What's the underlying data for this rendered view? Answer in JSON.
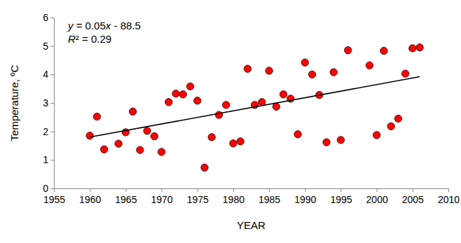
{
  "chart_data": {
    "type": "scatter",
    "x_label": "YEAR",
    "y_label": "Temperature, ºC",
    "annotations": [
      "y = 0.05x - 88.5",
      "R² = 0.29"
    ],
    "xlim": [
      1955,
      2010
    ],
    "xticks": [
      1955,
      1960,
      1965,
      1970,
      1975,
      1980,
      1985,
      1990,
      1995,
      2000,
      2005,
      2010
    ],
    "ylim": [
      0,
      6
    ],
    "yticks": [
      0,
      1,
      2,
      3,
      4,
      5,
      6
    ],
    "grid": false,
    "series": [
      {
        "type": "scatter",
        "marker": "circle",
        "color": "#ff0000",
        "x": [
          1960,
          1961,
          1962,
          1964,
          1965,
          1966,
          1967,
          1968,
          1969,
          1970,
          1971,
          1972,
          1973,
          1974,
          1975,
          1976,
          1977,
          1978,
          1979,
          1980,
          1981,
          1982,
          1983,
          1984,
          1985,
          1986,
          1987,
          1988,
          1989,
          1990,
          1991,
          1992,
          1993,
          1994,
          1995,
          1996,
          1999,
          2000,
          2001,
          2002,
          2003,
          2004,
          2005,
          2006
        ],
        "values": [
          1.85,
          2.52,
          1.37,
          1.57,
          1.97,
          2.7,
          1.35,
          2.02,
          1.83,
          1.28,
          3.03,
          3.33,
          3.3,
          3.58,
          3.08,
          0.73,
          1.8,
          2.58,
          2.93,
          1.58,
          1.65,
          4.2,
          2.93,
          3.03,
          4.13,
          2.87,
          3.3,
          3.15,
          1.9,
          4.42,
          4.0,
          3.28,
          1.62,
          4.08,
          1.7,
          4.85,
          4.32,
          1.87,
          4.83,
          2.18,
          2.45,
          4.03,
          4.92,
          4.95
        ]
      },
      {
        "type": "line",
        "line_style": "solid",
        "color": "#000000",
        "x": [
          1960,
          2006
        ],
        "values": [
          1.8,
          3.92
        ]
      }
    ]
  }
}
